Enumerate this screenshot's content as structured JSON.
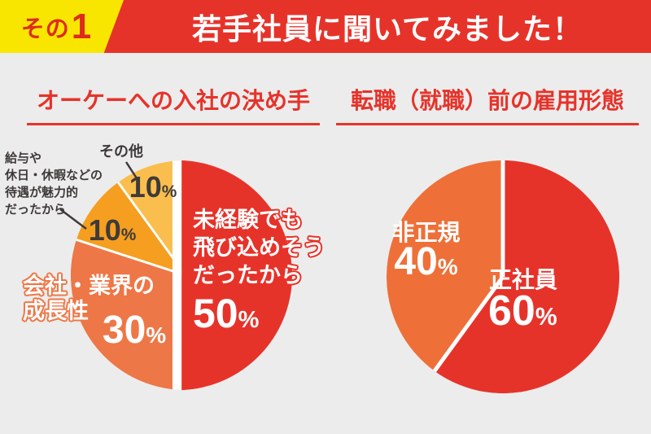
{
  "percent_symbol": "%",
  "header": {
    "badge_prefix": "その",
    "badge_number": "1",
    "title": "若手社員に聞いてみました！"
  },
  "colors": {
    "banner_red": "#e6332a",
    "badge_yellow": "#f9e600",
    "background_gray": "#ececec",
    "title_red": "#e6332a",
    "label_dark": "#3e3a39",
    "divider_white": "#ffffff"
  },
  "chart_data": [
    {
      "type": "pie",
      "title": "オーケーへの入社の決め手",
      "unit": "%",
      "start_angle_deg": 0,
      "direction": "clockwise",
      "legend_position": "on-slices",
      "divider_width": 3,
      "split_band": true,
      "slices": [
        {
          "label": "未経験でも飛び込めそうだったから",
          "value": 50,
          "color": "#e6332a",
          "label_color": "#ffffff"
        },
        {
          "label": "会社・業界の成長性",
          "value": 30,
          "color": "#ee7747",
          "label_color": "#ffffff"
        },
        {
          "label": "給与や休日・休暇などの待遇が魅力的だったから",
          "value": 10,
          "color": "#f59e1f",
          "label_color": "#3e3a39"
        },
        {
          "label": "その他",
          "value": 10,
          "color": "#f9be4d",
          "label_color": "#3e3a39"
        }
      ]
    },
    {
      "type": "pie",
      "title": "転職（就職）前の雇用形態",
      "unit": "%",
      "start_angle_deg": 0,
      "direction": "clockwise",
      "legend_position": "on-slices",
      "divider_width": 5,
      "split_band": false,
      "slices": [
        {
          "label": "正社員",
          "value": 60,
          "color": "#e6332a",
          "label_color": "#ffffff"
        },
        {
          "label": "非正規",
          "value": 40,
          "color": "#ee7038",
          "label_color": "#ffffff"
        }
      ]
    }
  ],
  "display": {
    "left": {
      "main_lines": [
        "未経験でも",
        "飛び込めそう",
        "だったから"
      ],
      "growth_lines": [
        "会社・業界の",
        "成長性"
      ],
      "kyuyo_lines": [
        "給与や",
        "休日・休暇などの",
        "待遇が魅力的",
        "だったから"
      ]
    }
  }
}
